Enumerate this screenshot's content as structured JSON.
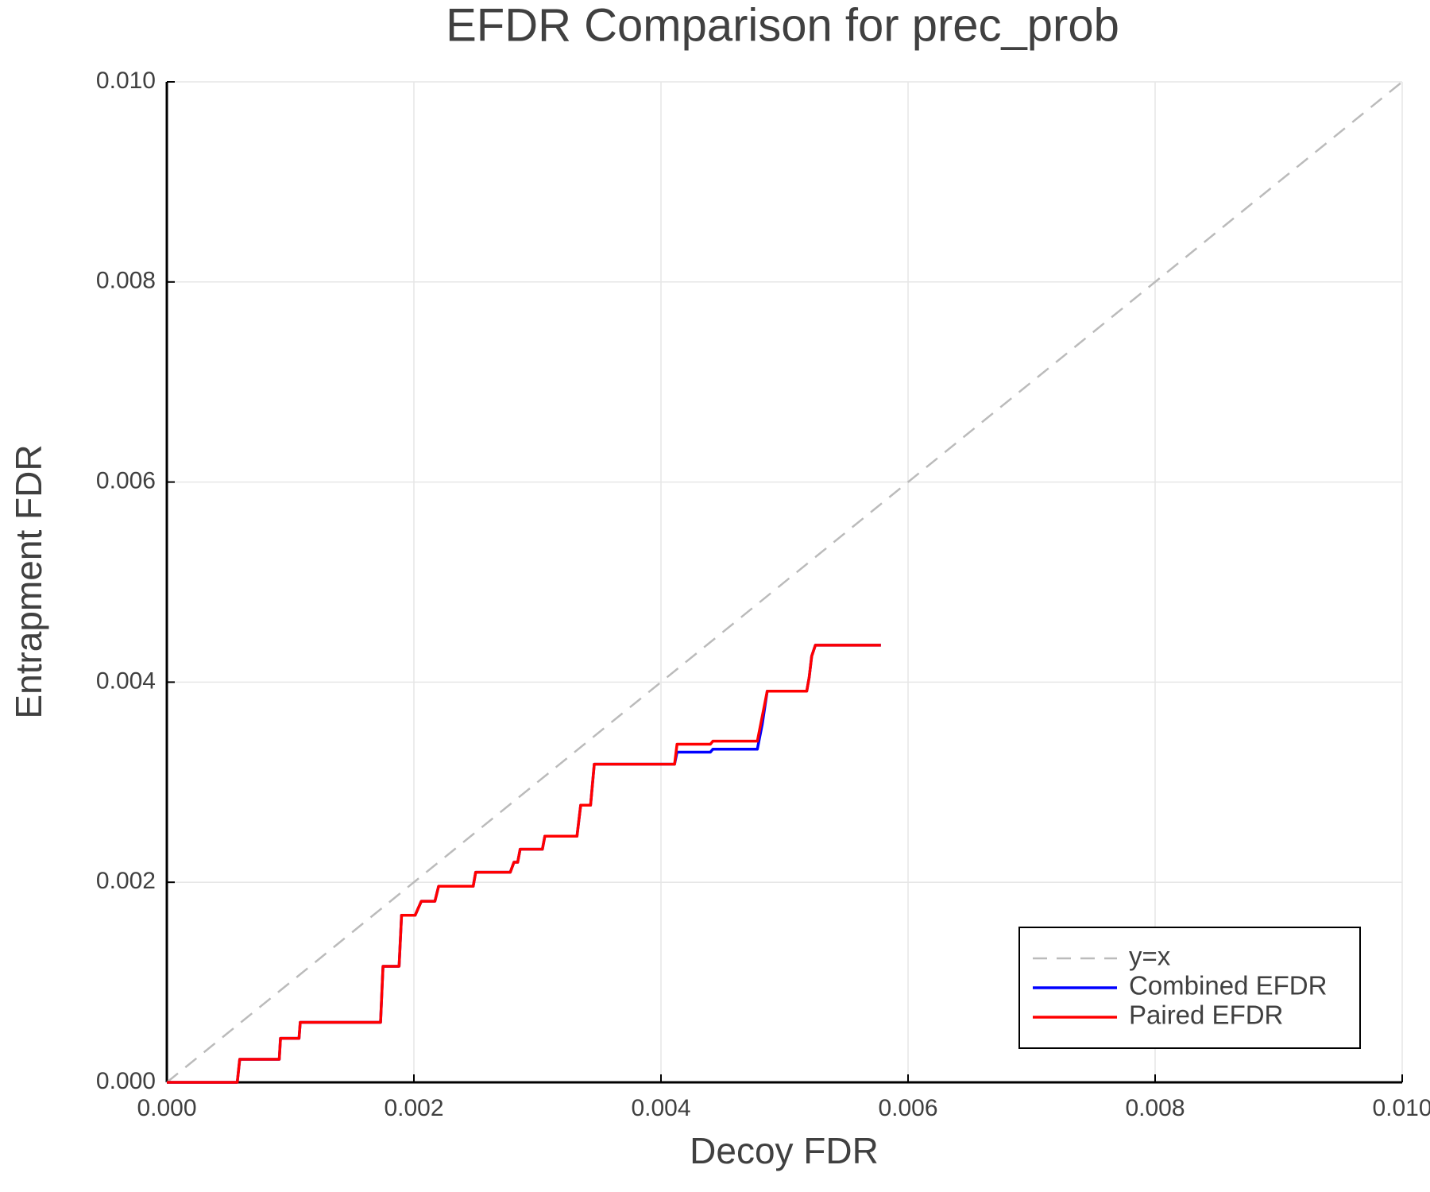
{
  "chart_data": {
    "type": "line",
    "title": "EFDR Comparison for prec_prob",
    "x_label": "Decoy FDR",
    "y_label": "Entrapment FDR",
    "xlim": [
      0,
      0.01
    ],
    "ylim": [
      0,
      0.01
    ],
    "xticks": [
      {
        "value": 0,
        "label": "0.000"
      },
      {
        "value": 0.002,
        "label": "0.002"
      },
      {
        "value": 0.004,
        "label": "0.004"
      },
      {
        "value": 0.006,
        "label": "0.006"
      },
      {
        "value": 0.008,
        "label": "0.008"
      },
      {
        "value": 0.01,
        "label": "0.010"
      }
    ],
    "yticks": [
      {
        "value": 0,
        "label": "0.000"
      },
      {
        "value": 0.002,
        "label": "0.002"
      },
      {
        "value": 0.004,
        "label": "0.004"
      },
      {
        "value": 0.006,
        "label": "0.006"
      },
      {
        "value": 0.008,
        "label": "0.008"
      },
      {
        "value": 0.01,
        "label": "0.010"
      }
    ],
    "grid": true,
    "legend": "lower-right",
    "series": [
      {
        "name": "y=x",
        "color": "#bbbbbb",
        "style": "dashed",
        "x": [
          0,
          0.01
        ],
        "values": [
          0,
          0.01
        ]
      },
      {
        "name": "Combined EFDR",
        "color": "#0000ff",
        "style": "solid",
        "x": [
          0,
          0.00057,
          0.00059,
          0.00091,
          0.00092,
          0.00107,
          0.00108,
          0.00173,
          0.00175,
          0.00188,
          0.0019,
          0.00201,
          0.00206,
          0.00217,
          0.0022,
          0.00248,
          0.0025,
          0.00278,
          0.00281,
          0.00284,
          0.00286,
          0.00304,
          0.00306,
          0.00332,
          0.00335,
          0.00343,
          0.00346,
          0.00411,
          0.00413,
          0.0044,
          0.00442,
          0.00478,
          0.00482,
          0.00486,
          0.00518,
          0.0052,
          0.00522,
          0.00525,
          0.00578
        ],
        "values": [
          0,
          0,
          0.00023,
          0.00023,
          0.00044,
          0.00044,
          0.0006,
          0.0006,
          0.00116,
          0.00116,
          0.00167,
          0.00167,
          0.00181,
          0.00181,
          0.00196,
          0.00196,
          0.0021,
          0.0021,
          0.0022,
          0.0022,
          0.00233,
          0.00233,
          0.00246,
          0.00246,
          0.00277,
          0.00277,
          0.00318,
          0.00318,
          0.0033,
          0.0033,
          0.00333,
          0.00333,
          0.00358,
          0.00391,
          0.00391,
          0.00405,
          0.00426,
          0.00437,
          0.00437
        ]
      },
      {
        "name": "Paired EFDR",
        "color": "#ff0000",
        "style": "solid",
        "x": [
          0,
          0.00057,
          0.00059,
          0.00091,
          0.00092,
          0.00107,
          0.00108,
          0.00173,
          0.00175,
          0.00188,
          0.0019,
          0.00201,
          0.00206,
          0.00217,
          0.0022,
          0.00248,
          0.0025,
          0.00278,
          0.00281,
          0.00284,
          0.00286,
          0.00304,
          0.00306,
          0.00332,
          0.00335,
          0.00343,
          0.00346,
          0.00411,
          0.00413,
          0.0044,
          0.00442,
          0.00478,
          0.00482,
          0.00486,
          0.00518,
          0.0052,
          0.00522,
          0.00525,
          0.00578
        ],
        "values": [
          0,
          0,
          0.00023,
          0.00023,
          0.00044,
          0.00044,
          0.0006,
          0.0006,
          0.00116,
          0.00116,
          0.00167,
          0.00167,
          0.00181,
          0.00181,
          0.00196,
          0.00196,
          0.0021,
          0.0021,
          0.0022,
          0.0022,
          0.00233,
          0.00233,
          0.00246,
          0.00246,
          0.00277,
          0.00277,
          0.00318,
          0.00318,
          0.00338,
          0.00338,
          0.00341,
          0.00341,
          0.00366,
          0.00391,
          0.00391,
          0.00405,
          0.00426,
          0.00437,
          0.00437
        ]
      }
    ]
  }
}
